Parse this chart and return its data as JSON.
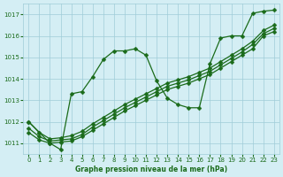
{
  "title": "Graphe pression niveau de la mer (hPa)",
  "bg_color": "#d4eef4",
  "grid_color": "#a0ccd8",
  "line_color": "#1a6b1a",
  "xlim": [
    -0.5,
    23.5
  ],
  "ylim": [
    1010.5,
    1017.5
  ],
  "xticks": [
    0,
    1,
    2,
    3,
    4,
    5,
    6,
    7,
    8,
    9,
    10,
    11,
    12,
    13,
    14,
    15,
    16,
    17,
    18,
    19,
    20,
    21,
    22,
    23
  ],
  "yticks": [
    1011,
    1012,
    1013,
    1014,
    1015,
    1016,
    1017
  ],
  "series": [
    {
      "x": [
        0,
        1,
        2,
        3,
        4,
        5,
        6,
        7,
        8,
        9,
        10,
        11,
        12,
        13,
        14,
        15,
        16,
        17,
        18,
        19,
        20,
        21,
        22,
        23
      ],
      "y": [
        1012.0,
        1011.5,
        1011.0,
        1010.7,
        1013.3,
        1013.4,
        1014.1,
        1014.9,
        1015.3,
        1015.3,
        1015.4,
        1015.1,
        1013.9,
        1013.1,
        1012.8,
        1012.65,
        1012.65,
        1014.7,
        1015.9,
        1016.0,
        1016.0,
        1017.05,
        1017.15,
        1017.2
      ]
    },
    {
      "x": [
        0,
        1,
        2,
        3,
        4,
        5,
        6,
        7,
        8,
        9,
        10,
        11,
        12,
        13,
        14,
        15,
        16,
        17,
        18,
        19,
        20,
        21,
        22,
        23
      ],
      "y": [
        1011.5,
        1011.15,
        1011.0,
        1011.05,
        1011.1,
        1011.3,
        1011.6,
        1011.9,
        1012.2,
        1012.5,
        1012.75,
        1013.0,
        1013.25,
        1013.5,
        1013.65,
        1013.8,
        1014.0,
        1014.2,
        1014.5,
        1014.8,
        1015.1,
        1015.4,
        1016.0,
        1016.2
      ]
    },
    {
      "x": [
        0,
        1,
        2,
        3,
        4,
        5,
        6,
        7,
        8,
        9,
        10,
        11,
        12,
        13,
        14,
        15,
        16,
        17,
        18,
        19,
        20,
        21,
        22,
        23
      ],
      "y": [
        1011.7,
        1011.3,
        1011.1,
        1011.15,
        1011.2,
        1011.4,
        1011.75,
        1012.05,
        1012.35,
        1012.65,
        1012.9,
        1013.15,
        1013.4,
        1013.65,
        1013.8,
        1013.95,
        1014.15,
        1014.35,
        1014.65,
        1014.95,
        1015.25,
        1015.6,
        1016.1,
        1016.35
      ]
    },
    {
      "x": [
        0,
        1,
        2,
        3,
        4,
        5,
        6,
        7,
        8,
        9,
        10,
        11,
        12,
        13,
        14,
        15,
        16,
        17,
        18,
        19,
        20,
        21,
        22,
        23
      ],
      "y": [
        1012.0,
        1011.5,
        1011.2,
        1011.25,
        1011.35,
        1011.55,
        1011.9,
        1012.2,
        1012.5,
        1012.8,
        1013.05,
        1013.3,
        1013.55,
        1013.8,
        1013.95,
        1014.1,
        1014.3,
        1014.5,
        1014.8,
        1015.1,
        1015.4,
        1015.75,
        1016.25,
        1016.5
      ]
    }
  ]
}
